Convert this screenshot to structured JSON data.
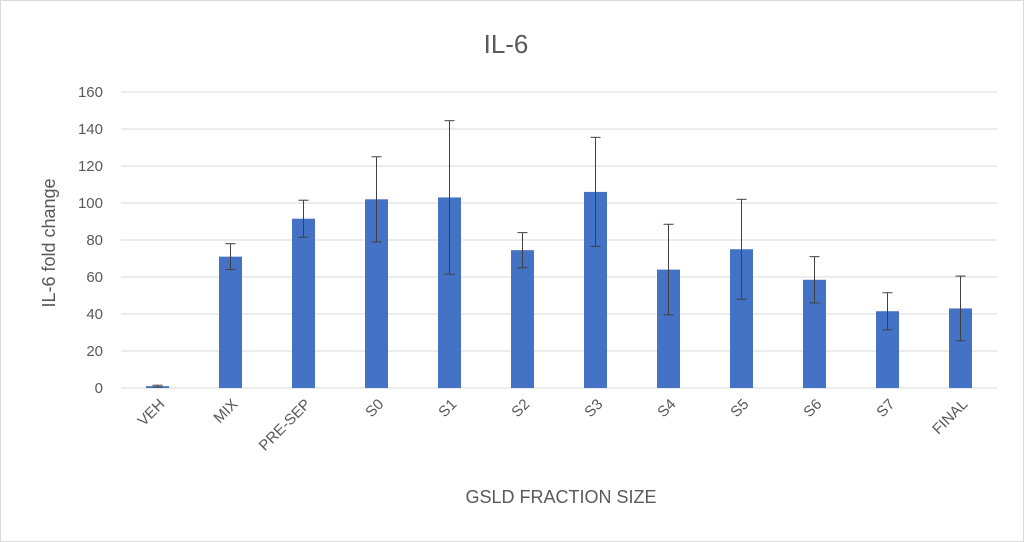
{
  "chart_data": {
    "type": "bar",
    "title": "IL-6",
    "xlabel": "GSLD FRACTION SIZE",
    "ylabel": "IL-6 fold change",
    "ylim": [
      0,
      160
    ],
    "yticks": [
      0,
      20,
      40,
      60,
      80,
      100,
      120,
      140,
      160
    ],
    "grid": true,
    "legend": "none",
    "bar_color": "#4472C4",
    "categories": [
      "VEH",
      "MIX",
      "PRE-SEP",
      "S0",
      "S1",
      "S2",
      "S3",
      "S4",
      "S5",
      "S6",
      "S7",
      "FINAL"
    ],
    "values": [
      1,
      71,
      91.5,
      102,
      103,
      74.5,
      106,
      64,
      75,
      58.5,
      41.5,
      43
    ],
    "error": [
      0.5,
      7,
      10,
      23,
      41.5,
      9.5,
      29.5,
      24.5,
      27,
      12.5,
      10,
      17.5
    ]
  }
}
